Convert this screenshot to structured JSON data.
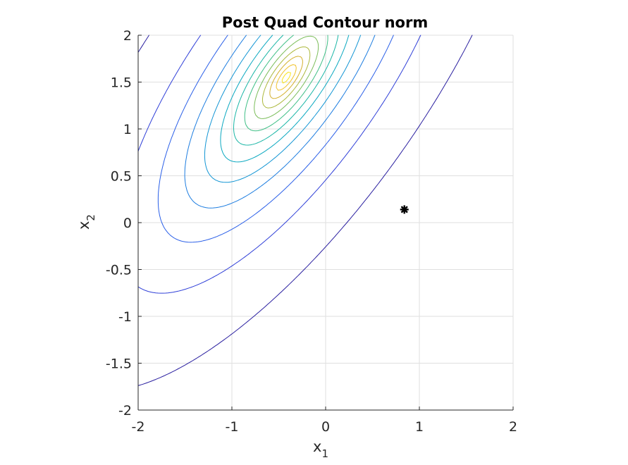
{
  "chart_data": {
    "type": "contour",
    "title": "Post Quad Contour norm",
    "xlabel": "x",
    "xlabel_sub": "1",
    "ylabel": "x",
    "ylabel_sub": "2",
    "xlim": [
      -2,
      2
    ],
    "ylim": [
      -2,
      2
    ],
    "xticks": [
      -2,
      -1,
      0,
      1,
      2
    ],
    "yticks": [
      -2,
      -1.5,
      -1,
      -0.5,
      0,
      0.5,
      1,
      1.5,
      2
    ],
    "xtick_labels": [
      "-2",
      "-1",
      "0",
      "1",
      "2"
    ],
    "ytick_labels": [
      "-2",
      "-1.5",
      "-1",
      "-0.5",
      "0",
      "0.5",
      "1",
      "1.5",
      "2"
    ],
    "grid": true,
    "colormap": "parula",
    "peak": [
      -0.42,
      1.55
    ],
    "contour_levels": 13,
    "marker": {
      "x": 0.84,
      "y": 0.14,
      "symbol": "star",
      "color": "#000000"
    },
    "level_colors": [
      "#2a1fa0",
      "#2f3fd8",
      "#2a5fe8",
      "#1d7de0",
      "#1295d4",
      "#0aa8c0",
      "#1bb6a6",
      "#3fbf86",
      "#7bbd5a",
      "#acb83c",
      "#d4b02e",
      "#f0c22c",
      "#f8e41e"
    ]
  }
}
